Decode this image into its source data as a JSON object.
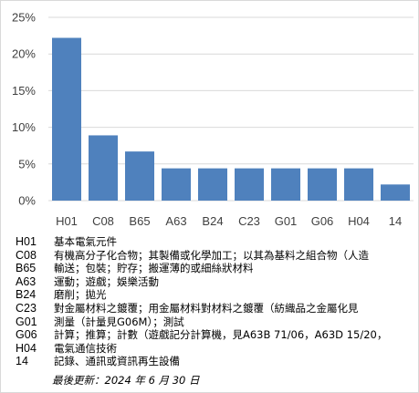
{
  "chart_data": {
    "type": "bar",
    "title": "",
    "xlabel": "",
    "ylabel": "",
    "categories": [
      "H01",
      "C08",
      "B65",
      "A63",
      "B24",
      "C23",
      "G01",
      "G06",
      "H04",
      "14"
    ],
    "values": [
      22.2,
      8.9,
      6.7,
      4.4,
      4.4,
      4.4,
      4.4,
      4.4,
      4.4,
      2.2
    ],
    "ylim": [
      0,
      25
    ],
    "yticks": [
      "0%",
      "5%",
      "10%",
      "15%",
      "20%",
      "25%"
    ],
    "grid": true,
    "bar_color": "#4f81bd"
  },
  "legend": [
    {
      "code": "H01",
      "desc": "基本電氣元件"
    },
    {
      "code": "C08",
      "desc": "有機高分子化合物；其製備或化學加工；以其為基料之組合物（人造"
    },
    {
      "code": "B65",
      "desc": "輸送；包裝；貯存；搬運薄的或細絲狀材料"
    },
    {
      "code": "A63",
      "desc": "運動；遊戲；娛樂活動"
    },
    {
      "code": "B24",
      "desc": "磨削；拋光"
    },
    {
      "code": "C23",
      "desc": "對金屬材料之鍍覆；用金屬材料對材料之鍍覆（紡織品之金屬化見"
    },
    {
      "code": "G01",
      "desc": "測量（計量見G06M）；測試"
    },
    {
      "code": "G06",
      "desc": "計算；推算；計數（遊戲記分計算機，見A63B 71/06，A63D 15/20，"
    },
    {
      "code": "H04",
      "desc": "電氣通信技術"
    },
    {
      "code": "14",
      "desc": "記錄、通訊或資訊再生設備"
    }
  ],
  "updated": "最後更新：2024 年 6 月 30 日"
}
